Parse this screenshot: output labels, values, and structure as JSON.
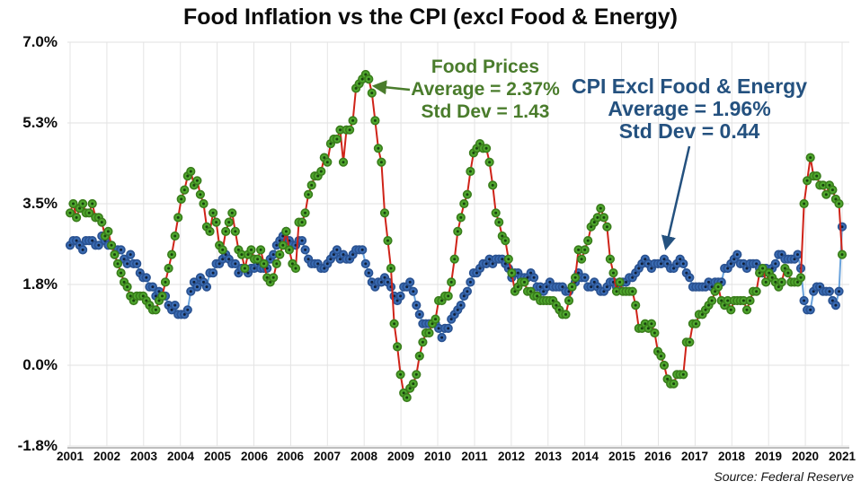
{
  "header": {
    "title": "Food Inflation vs the CPI (excl Food & Energy)"
  },
  "footer": {
    "source": "Source: Federal Reserve"
  },
  "chart_data": {
    "type": "line",
    "title": "Food Inflation vs the CPI (excl Food & Energy)",
    "x_start": "2001-01",
    "x_end": "2021-04",
    "x_frequency": "monthly",
    "grid": true,
    "ylim": [
      -1.75,
      7.0
    ],
    "y_tick_labels": [
      "7.0%",
      "5.3%",
      "3.5%",
      "1.8%",
      "0.0%",
      "-1.8%"
    ],
    "y_tick_values": [
      7.0,
      5.25,
      3.5,
      1.75,
      0.0,
      -1.75
    ],
    "x_tick_labels": [
      "2001",
      "2002",
      "2003",
      "2004",
      "2005",
      "2006",
      "2006",
      "2007",
      "2008",
      "2009",
      "2010",
      "2011",
      "2012",
      "2013",
      "2014",
      "2015",
      "2016",
      "2017",
      "2018",
      "2019",
      "2020",
      "2021"
    ],
    "series": [
      {
        "name": "CPI Excl Food & Energy",
        "line_color": "#6aa3dc",
        "marker_fill": "#3a6cb4",
        "marker_edge": "#2a5291",
        "marker_center": "#111f38",
        "values": [
          2.6,
          2.7,
          2.7,
          2.6,
          2.5,
          2.7,
          2.7,
          2.7,
          2.6,
          2.6,
          2.8,
          2.7,
          2.6,
          2.6,
          2.4,
          2.5,
          2.5,
          2.3,
          2.2,
          2.4,
          2.2,
          2.2,
          2.0,
          1.9,
          1.9,
          1.7,
          1.7,
          1.5,
          1.6,
          1.5,
          1.5,
          1.3,
          1.2,
          1.3,
          1.1,
          1.1,
          1.1,
          1.2,
          1.6,
          1.8,
          1.7,
          1.9,
          1.8,
          1.7,
          2.0,
          2.0,
          2.2,
          2.2,
          2.3,
          2.4,
          2.3,
          2.2,
          2.2,
          2.0,
          2.1,
          2.1,
          2.0,
          2.1,
          2.1,
          2.2,
          2.1,
          2.1,
          2.1,
          2.3,
          2.4,
          2.6,
          2.7,
          2.8,
          2.9,
          2.7,
          2.6,
          2.6,
          2.7,
          2.7,
          2.5,
          2.3,
          2.2,
          2.2,
          2.2,
          2.1,
          2.1,
          2.2,
          2.3,
          2.4,
          2.5,
          2.3,
          2.4,
          2.3,
          2.3,
          2.4,
          2.5,
          2.5,
          2.5,
          2.2,
          2.0,
          1.8,
          1.7,
          1.8,
          1.8,
          1.9,
          1.8,
          1.7,
          1.5,
          1.4,
          1.5,
          1.7,
          1.7,
          1.8,
          1.6,
          1.3,
          1.1,
          0.9,
          0.9,
          0.9,
          0.9,
          0.9,
          0.8,
          0.6,
          0.8,
          0.8,
          1.0,
          1.1,
          1.2,
          1.3,
          1.5,
          1.6,
          1.8,
          2.0,
          2.0,
          2.1,
          2.2,
          2.2,
          2.3,
          2.2,
          2.3,
          2.3,
          2.3,
          2.2,
          2.1,
          1.9,
          2.0,
          2.0,
          1.9,
          1.9,
          1.9,
          2.0,
          1.9,
          1.7,
          1.7,
          1.6,
          1.7,
          1.8,
          1.7,
          1.7,
          1.7,
          1.7,
          1.6,
          1.6,
          1.7,
          1.8,
          2.0,
          1.9,
          1.9,
          1.7,
          1.7,
          1.8,
          1.7,
          1.6,
          1.6,
          1.7,
          1.8,
          1.8,
          1.7,
          1.8,
          1.8,
          1.8,
          1.9,
          1.9,
          2.0,
          2.1,
          2.2,
          2.3,
          2.2,
          2.1,
          2.2,
          2.2,
          2.2,
          2.3,
          2.2,
          2.1,
          2.1,
          2.2,
          2.3,
          2.2,
          2.0,
          1.9,
          1.7,
          1.7,
          1.7,
          1.7,
          1.7,
          1.8,
          1.7,
          1.8,
          1.8,
          1.8,
          2.1,
          2.1,
          2.2,
          2.3,
          2.4,
          2.2,
          2.2,
          2.1,
          2.2,
          2.2,
          2.2,
          2.1,
          2.0,
          2.1,
          2.0,
          2.1,
          2.2,
          2.4,
          2.4,
          2.3,
          2.3,
          2.3,
          2.3,
          2.4,
          2.1,
          1.4,
          1.2,
          1.2,
          1.6,
          1.7,
          1.7,
          1.6,
          1.6,
          1.6,
          1.4,
          1.3,
          1.6,
          3.0
        ]
      },
      {
        "name": "Food Prices",
        "line_color": "#cf2318",
        "marker_fill": "#4fa82e",
        "marker_edge": "#3a7d1c",
        "marker_center": "#19430e",
        "values": [
          3.3,
          3.5,
          3.2,
          3.4,
          3.5,
          3.3,
          3.3,
          3.5,
          3.2,
          3.2,
          3.1,
          2.8,
          2.9,
          2.6,
          2.4,
          2.2,
          2.0,
          1.8,
          1.7,
          1.5,
          1.4,
          1.5,
          1.5,
          1.5,
          1.4,
          1.3,
          1.2,
          1.2,
          1.4,
          1.5,
          1.8,
          2.1,
          2.4,
          2.8,
          3.2,
          3.6,
          3.8,
          4.1,
          4.2,
          3.9,
          4.0,
          3.7,
          3.5,
          3.0,
          2.9,
          3.3,
          3.1,
          2.6,
          2.5,
          2.9,
          3.1,
          3.3,
          2.9,
          2.5,
          2.4,
          2.1,
          2.4,
          2.5,
          2.3,
          2.3,
          2.5,
          2.2,
          1.9,
          1.8,
          1.9,
          2.2,
          2.4,
          2.6,
          2.9,
          2.5,
          2.2,
          2.1,
          3.1,
          3.1,
          3.3,
          3.7,
          3.9,
          4.1,
          4.1,
          4.2,
          4.5,
          4.4,
          4.8,
          4.9,
          4.9,
          5.1,
          4.4,
          5.1,
          5.1,
          5.3,
          6.0,
          6.1,
          6.2,
          6.3,
          6.2,
          5.9,
          5.3,
          4.7,
          4.4,
          3.3,
          2.7,
          2.1,
          0.9,
          0.4,
          -0.2,
          -0.6,
          -0.7,
          -0.5,
          -0.4,
          -0.2,
          0.2,
          0.5,
          0.7,
          0.7,
          0.9,
          1.0,
          1.4,
          1.4,
          1.5,
          1.5,
          1.8,
          2.3,
          2.9,
          3.2,
          3.5,
          3.7,
          4.2,
          4.6,
          4.7,
          4.8,
          4.7,
          4.7,
          4.4,
          3.9,
          3.3,
          3.1,
          2.8,
          2.7,
          2.3,
          2.0,
          1.6,
          1.7,
          1.8,
          1.8,
          1.6,
          1.6,
          1.5,
          1.5,
          1.4,
          1.4,
          1.4,
          1.4,
          1.4,
          1.3,
          1.2,
          1.1,
          1.1,
          1.4,
          1.7,
          1.9,
          2.5,
          2.3,
          2.5,
          2.7,
          3.0,
          3.1,
          3.2,
          3.4,
          3.2,
          3.0,
          2.3,
          2.0,
          1.6,
          1.8,
          1.6,
          1.6,
          1.6,
          1.6,
          1.3,
          0.8,
          0.8,
          0.9,
          0.8,
          0.9,
          0.7,
          0.3,
          0.2,
          0.0,
          -0.3,
          -0.4,
          -0.4,
          -0.2,
          -0.2,
          -0.2,
          0.5,
          0.5,
          0.9,
          0.9,
          1.1,
          1.1,
          1.2,
          1.3,
          1.4,
          1.6,
          1.7,
          1.4,
          1.3,
          1.4,
          1.2,
          1.4,
          1.4,
          1.4,
          1.4,
          1.2,
          1.4,
          1.6,
          1.6,
          2.0,
          2.1,
          1.8,
          2.0,
          1.9,
          1.8,
          1.7,
          1.8,
          2.1,
          2.0,
          1.8,
          1.8,
          1.8,
          1.9,
          3.5,
          4.0,
          4.5,
          4.1,
          4.1,
          3.9,
          3.9,
          3.7,
          3.9,
          3.8,
          3.6,
          3.5,
          2.4
        ]
      }
    ],
    "annotations": [
      {
        "id": "food",
        "lines": [
          "Food Prices",
          "Average = 2.37%",
          "Std Dev = 1.43"
        ],
        "color": "#4a7c2c"
      },
      {
        "id": "cpi",
        "lines": [
          "CPI Excl Food & Energy",
          "Average = 1.96%",
          "Std Dev = 0.44"
        ],
        "color": "#24517f"
      }
    ],
    "source": "Source: Federal Reserve"
  }
}
